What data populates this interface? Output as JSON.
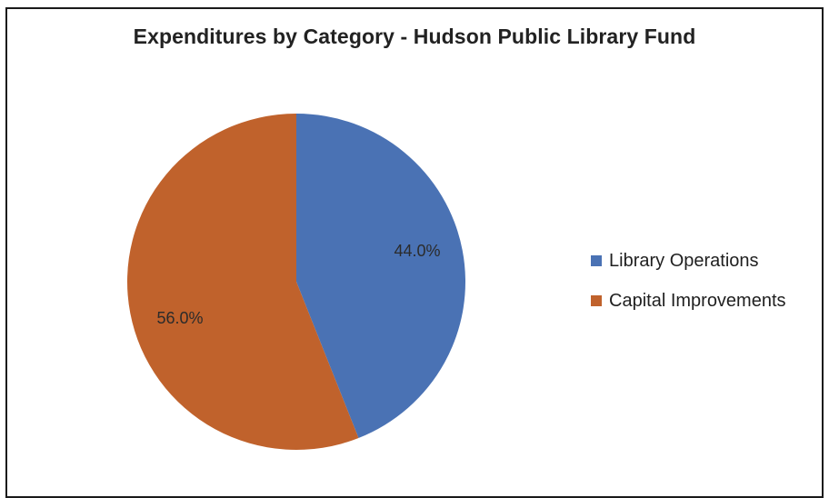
{
  "chart_data": {
    "type": "pie",
    "title": "Expenditures by Category - Hudson Public Library Fund",
    "slices": [
      {
        "name": "Library Operations",
        "value": 44.0,
        "label": "44.0%",
        "color": "#4a72b4"
      },
      {
        "name": "Capital Improvements",
        "value": 56.0,
        "label": "56.0%",
        "color": "#c0622c"
      }
    ],
    "legend_position": "right"
  }
}
